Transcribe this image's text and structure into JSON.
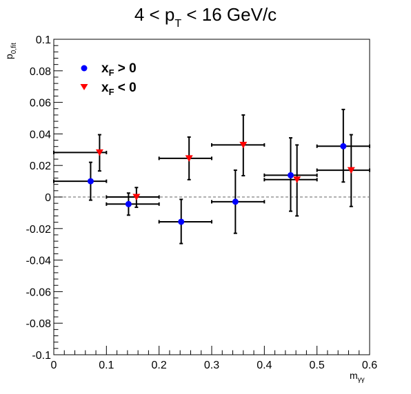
{
  "chart_data": {
    "type": "scatter",
    "title": {
      "prefix": "4 < p",
      "subscript": "T",
      "suffix": " < 16 GeV/c"
    },
    "xlabel": {
      "base": "m",
      "subscript": "γγ"
    },
    "ylabel": {
      "base": "p",
      "subscript": "0,fit"
    },
    "xlim": [
      0,
      0.6
    ],
    "ylim": [
      -0.1,
      0.1
    ],
    "x_ticks": [
      0,
      0.1,
      0.2,
      0.3,
      0.4,
      0.5,
      0.6
    ],
    "x_tick_labels": [
      "0",
      "0.1",
      "0.2",
      "0.3",
      "0.4",
      "0.5",
      "0.6"
    ],
    "y_ticks": [
      -0.1,
      -0.08,
      -0.06,
      -0.04,
      -0.02,
      0,
      0.02,
      0.04,
      0.06,
      0.08,
      0.1
    ],
    "y_tick_labels": [
      "-0.1",
      "-0.08",
      "-0.06",
      "-0.04",
      "-0.02",
      "0",
      "0.02",
      "0.04",
      "0.06",
      "0.08",
      "0.1"
    ],
    "grid": false,
    "reference_line": {
      "y": 0,
      "style": "dashed",
      "color": "#808080"
    },
    "legend": {
      "placement": "top-left"
    },
    "series": [
      {
        "name": {
          "base": "x",
          "subscript": "F",
          "suffix": " > 0"
        },
        "marker": "circle",
        "color": "#0000ff",
        "points": [
          {
            "x": 0.07,
            "y": 0.01,
            "xlo": 0.0,
            "xhi": 0.1,
            "ylo": -0.002,
            "yhi": 0.022
          },
          {
            "x": 0.142,
            "y": -0.0045,
            "xlo": 0.1,
            "xhi": 0.2,
            "ylo": -0.0115,
            "yhi": 0.0025
          },
          {
            "x": 0.242,
            "y": -0.0157,
            "xlo": 0.2,
            "xhi": 0.3,
            "ylo": -0.0295,
            "yhi": -0.0015
          },
          {
            "x": 0.345,
            "y": -0.003,
            "xlo": 0.3,
            "xhi": 0.4,
            "ylo": -0.023,
            "yhi": 0.017
          },
          {
            "x": 0.45,
            "y": 0.0138,
            "xlo": 0.4,
            "xhi": 0.5,
            "ylo": -0.009,
            "yhi": 0.0375
          },
          {
            "x": 0.55,
            "y": 0.0322,
            "xlo": 0.5,
            "xhi": 0.6,
            "ylo": 0.0095,
            "yhi": 0.0555
          }
        ]
      },
      {
        "name": {
          "base": "x",
          "subscript": "F",
          "suffix": " < 0"
        },
        "marker": "triangle-down",
        "color": "#ff0000",
        "points": [
          {
            "x": 0.087,
            "y": 0.0282,
            "xlo": 0.0,
            "xhi": 0.1,
            "ylo": 0.0165,
            "yhi": 0.0395
          },
          {
            "x": 0.157,
            "y": 0.0,
            "xlo": 0.1,
            "xhi": 0.2,
            "ylo": -0.0065,
            "yhi": 0.006
          },
          {
            "x": 0.257,
            "y": 0.0245,
            "xlo": 0.2,
            "xhi": 0.3,
            "ylo": 0.011,
            "yhi": 0.038
          },
          {
            "x": 0.36,
            "y": 0.033,
            "xlo": 0.3,
            "xhi": 0.4,
            "ylo": 0.0135,
            "yhi": 0.052
          },
          {
            "x": 0.462,
            "y": 0.011,
            "xlo": 0.4,
            "xhi": 0.5,
            "ylo": -0.012,
            "yhi": 0.033
          },
          {
            "x": 0.565,
            "y": 0.017,
            "xlo": 0.5,
            "xhi": 0.6,
            "ylo": -0.006,
            "yhi": 0.0395
          }
        ]
      }
    ]
  }
}
